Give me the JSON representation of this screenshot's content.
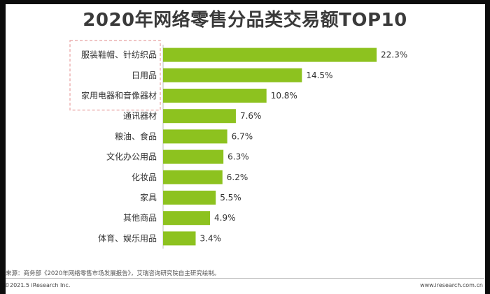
{
  "colors": {
    "bar": "#8dc21f",
    "highlight_border": "#e8a0a0",
    "text": "#333333"
  },
  "title": "2020年网络零售分品类交易额TOP10",
  "chart_data": {
    "type": "bar",
    "orientation": "horizontal",
    "title": "2020年网络零售分品类交易额TOP10",
    "categories": [
      "服装鞋帽、针纺织品",
      "日用品",
      "家用电器和音像器材",
      "通讯器材",
      "粮油、食品",
      "文化办公用品",
      "化妆品",
      "家具",
      "其他商品",
      "体育、娱乐用品"
    ],
    "values": [
      22.3,
      14.5,
      10.8,
      7.6,
      6.7,
      6.3,
      6.2,
      5.5,
      4.9,
      3.4
    ],
    "value_labels": [
      "22.3%",
      "14.5%",
      "10.8%",
      "7.6%",
      "6.7%",
      "6.3%",
      "6.2%",
      "5.5%",
      "4.9%",
      "3.4%"
    ],
    "unit": "%",
    "xlim": [
      0,
      22.3
    ],
    "grid": false,
    "highlighted_categories": [
      "服装鞋帽、针纺织品",
      "日用品",
      "家用电器和音像器材"
    ]
  },
  "footer": {
    "source": "来源：商务部《2020年网络零售市场发展报告》，艾瑞咨询研究院自主研究绘制。",
    "copyright": "©2021.5 iResearch Inc.",
    "website": "www.iresearch.com.cn"
  }
}
